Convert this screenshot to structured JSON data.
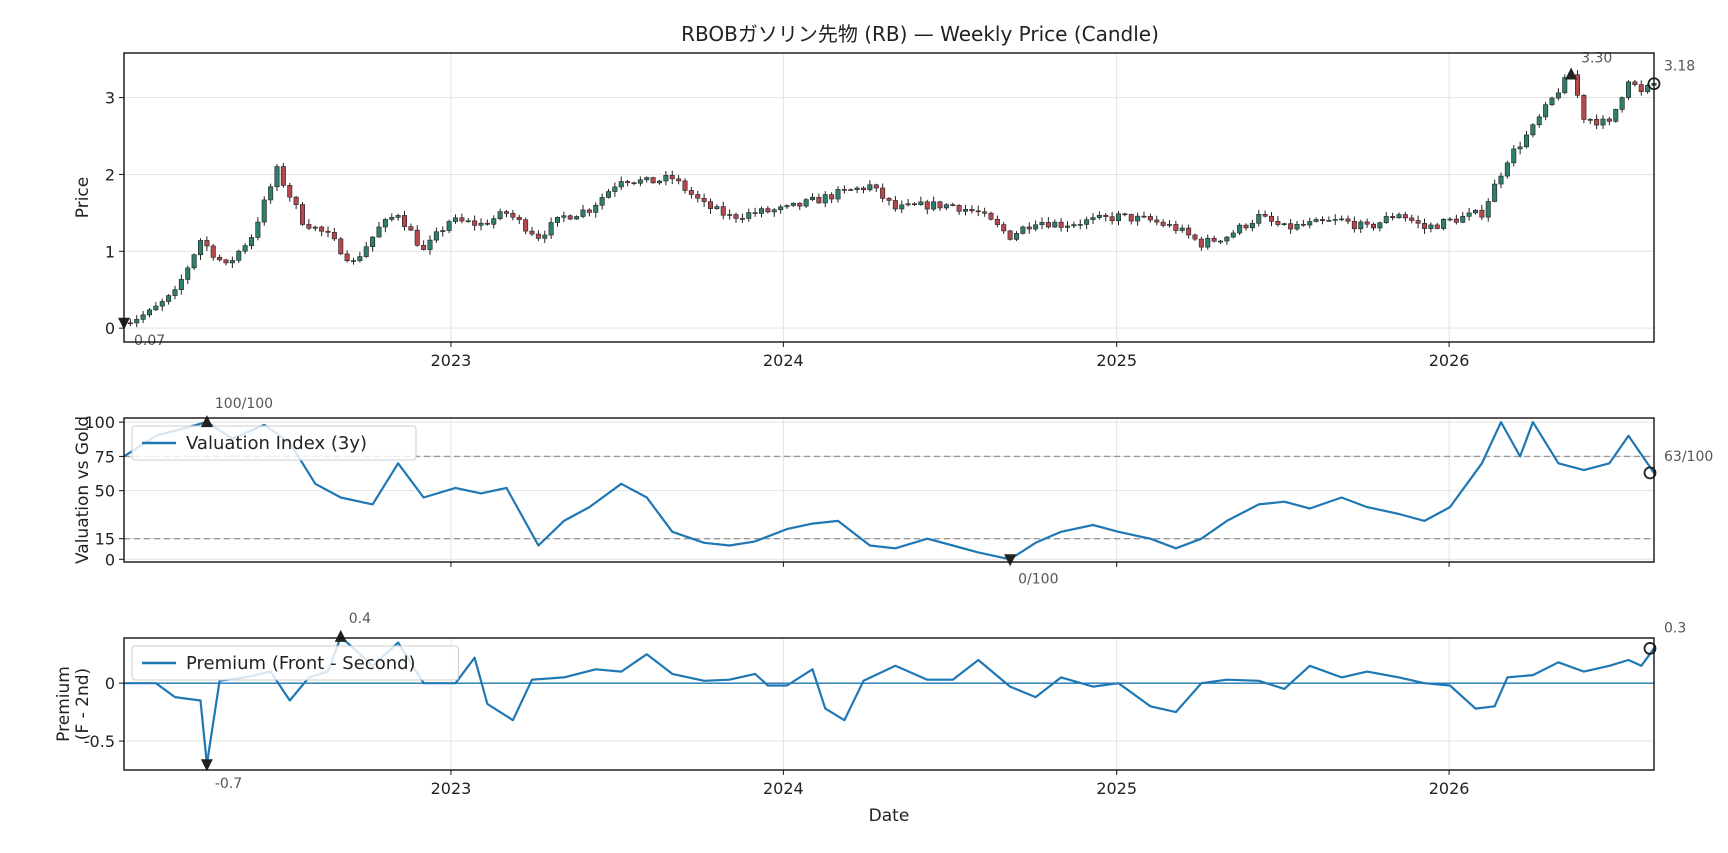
{
  "title": "RBOBガソリン先物 (RB) — Weekly Price (Candle)",
  "chart_data": [
    {
      "type": "candlestick",
      "title": "RBOBガソリン先物 (RB) — Weekly Price (Candle)",
      "xlabel": "",
      "ylabel": "Price",
      "xlim": [
        "2022-01-07",
        "2026-08-14"
      ],
      "ylim": [
        -0.18,
        3.58
      ],
      "yticks": [
        0,
        1,
        2,
        3
      ],
      "xticks": [
        "2023",
        "2024",
        "2025",
        "2026"
      ],
      "grid": true,
      "up_color": "#2f7d6d",
      "down_color": "#b5484d",
      "close_anchors": [
        [
          "2022-01-07",
          0.07
        ],
        [
          "2022-02-04",
          0.2
        ],
        [
          "2022-03-04",
          0.45
        ],
        [
          "2022-04-01",
          1.15
        ],
        [
          "2022-04-29",
          0.8
        ],
        [
          "2022-05-27",
          1.2
        ],
        [
          "2022-06-24",
          2.05
        ],
        [
          "2022-07-22",
          1.4
        ],
        [
          "2022-08-19",
          1.2
        ],
        [
          "2022-09-16",
          0.85
        ],
        [
          "2022-10-14",
          1.3
        ],
        [
          "2022-11-04",
          1.5
        ],
        [
          "2022-12-02",
          1.0
        ],
        [
          "2022-12-30",
          1.4
        ],
        [
          "2023-02-03",
          1.35
        ],
        [
          "2023-03-03",
          1.5
        ],
        [
          "2023-04-07",
          1.2
        ],
        [
          "2023-05-05",
          1.45
        ],
        [
          "2023-06-02",
          1.55
        ],
        [
          "2023-07-07",
          1.95
        ],
        [
          "2023-08-04",
          1.9
        ],
        [
          "2023-09-01",
          1.95
        ],
        [
          "2023-10-06",
          1.6
        ],
        [
          "2023-11-03",
          1.45
        ],
        [
          "2023-12-01",
          1.5
        ],
        [
          "2024-01-05",
          1.55
        ],
        [
          "2024-02-02",
          1.65
        ],
        [
          "2024-03-01",
          1.75
        ],
        [
          "2024-04-05",
          1.85
        ],
        [
          "2024-05-03",
          1.55
        ],
        [
          "2024-06-07",
          1.6
        ],
        [
          "2024-07-05",
          1.6
        ],
        [
          "2024-08-02",
          1.5
        ],
        [
          "2024-09-06",
          1.2
        ],
        [
          "2024-10-04",
          1.4
        ],
        [
          "2024-11-01",
          1.35
        ],
        [
          "2024-12-06",
          1.4
        ],
        [
          "2025-01-03",
          1.45
        ],
        [
          "2025-02-07",
          1.4
        ],
        [
          "2025-03-07",
          1.3
        ],
        [
          "2025-04-04",
          1.1
        ],
        [
          "2025-05-02",
          1.2
        ],
        [
          "2025-06-06",
          1.45
        ],
        [
          "2025-07-04",
          1.3
        ],
        [
          "2025-08-01",
          1.35
        ],
        [
          "2025-09-05",
          1.4
        ],
        [
          "2025-10-03",
          1.3
        ],
        [
          "2025-11-07",
          1.5
        ],
        [
          "2025-12-05",
          1.3
        ],
        [
          "2026-01-02",
          1.4
        ],
        [
          "2026-02-06",
          1.5
        ],
        [
          "2026-03-06",
          2.2
        ],
        [
          "2026-04-03",
          2.6
        ],
        [
          "2026-05-01",
          3.1
        ],
        [
          "2026-05-15",
          3.3
        ],
        [
          "2026-05-29",
          2.75
        ],
        [
          "2026-06-26",
          2.65
        ],
        [
          "2026-07-17",
          3.25
        ],
        [
          "2026-07-31",
          3.05
        ],
        [
          "2026-08-14",
          3.18
        ]
      ],
      "annotations": [
        {
          "label": "0.07",
          "x": "2022-01-07",
          "y": 0.07,
          "marker": "min"
        },
        {
          "label": "3.30",
          "x": "2026-05-15",
          "y": 3.3,
          "marker": "max"
        },
        {
          "label": "3.18",
          "x": "2026-08-14",
          "y": 3.18,
          "marker": "last"
        }
      ]
    },
    {
      "type": "line",
      "ylabel": "Valuation vs Gold",
      "ylim": [
        -2,
        103
      ],
      "yticks": [
        0,
        15,
        50,
        75,
        100
      ],
      "reference_lines": [
        15,
        75
      ],
      "legend": {
        "position": "upper-left"
      },
      "series": [
        {
          "name": "Valuation Index (3y)",
          "color": "#1f77b4",
          "points": [
            [
              "2022-01-07",
              75
            ],
            [
              "2022-02-11",
              90
            ],
            [
              "2022-03-11",
              95
            ],
            [
              "2022-04-08",
              100
            ],
            [
              "2022-05-06",
              88
            ],
            [
              "2022-06-10",
              98
            ],
            [
              "2022-07-08",
              85
            ],
            [
              "2022-08-05",
              55
            ],
            [
              "2022-09-02",
              45
            ],
            [
              "2022-10-07",
              40
            ],
            [
              "2022-11-04",
              70
            ],
            [
              "2022-12-02",
              45
            ],
            [
              "2023-01-06",
              52
            ],
            [
              "2023-02-03",
              48
            ],
            [
              "2023-03-03",
              52
            ],
            [
              "2023-04-07",
              10
            ],
            [
              "2023-05-05",
              28
            ],
            [
              "2023-06-02",
              38
            ],
            [
              "2023-07-07",
              55
            ],
            [
              "2023-08-04",
              45
            ],
            [
              "2023-09-01",
              20
            ],
            [
              "2023-10-06",
              12
            ],
            [
              "2023-11-03",
              10
            ],
            [
              "2023-12-01",
              13
            ],
            [
              "2024-01-05",
              22
            ],
            [
              "2024-02-02",
              26
            ],
            [
              "2024-03-01",
              28
            ],
            [
              "2024-04-05",
              10
            ],
            [
              "2024-05-03",
              8
            ],
            [
              "2024-06-07",
              15
            ],
            [
              "2024-07-05",
              10
            ],
            [
              "2024-08-02",
              5
            ],
            [
              "2024-09-06",
              0
            ],
            [
              "2024-10-04",
              12
            ],
            [
              "2024-11-01",
              20
            ],
            [
              "2024-12-06",
              25
            ],
            [
              "2025-01-03",
              20
            ],
            [
              "2025-02-07",
              15
            ],
            [
              "2025-03-07",
              8
            ],
            [
              "2025-04-04",
              15
            ],
            [
              "2025-05-02",
              28
            ],
            [
              "2025-06-06",
              40
            ],
            [
              "2025-07-04",
              42
            ],
            [
              "2025-08-01",
              37
            ],
            [
              "2025-09-05",
              45
            ],
            [
              "2025-10-03",
              38
            ],
            [
              "2025-11-07",
              33
            ],
            [
              "2025-12-05",
              28
            ],
            [
              "2026-01-02",
              38
            ],
            [
              "2026-02-06",
              70
            ],
            [
              "2026-02-27",
              100
            ],
            [
              "2026-03-20",
              75
            ],
            [
              "2026-04-03",
              100
            ],
            [
              "2026-05-01",
              70
            ],
            [
              "2026-05-29",
              65
            ],
            [
              "2026-06-26",
              70
            ],
            [
              "2026-07-17",
              90
            ],
            [
              "2026-08-14",
              63
            ]
          ]
        }
      ],
      "annotations": [
        {
          "label": "100/100",
          "x": "2022-04-08",
          "y": 100,
          "marker": "max"
        },
        {
          "label": "0/100",
          "x": "2024-09-06",
          "y": 0,
          "marker": "min"
        },
        {
          "label": "63/100",
          "x": "2026-08-14",
          "y": 63,
          "marker": "last"
        }
      ]
    },
    {
      "type": "line",
      "xlabel": "Date",
      "ylabel": "Premium\n(F - 2nd)",
      "ylim": [
        -0.75,
        0.39
      ],
      "yticks": [
        0.0,
        -0.5
      ],
      "xticks": [
        "2023",
        "2024",
        "2025",
        "2026"
      ],
      "reference_lines": [
        0
      ],
      "legend": {
        "position": "upper-left"
      },
      "series": [
        {
          "name": "Premium (Front - Second)",
          "color": "#1f77b4",
          "points": [
            [
              "2022-01-07",
              0.0
            ],
            [
              "2022-02-11",
              0.0
            ],
            [
              "2022-03-04",
              -0.12
            ],
            [
              "2022-04-01",
              -0.15
            ],
            [
              "2022-04-08",
              -0.7
            ],
            [
              "2022-04-22",
              0.02
            ],
            [
              "2022-05-20",
              0.05
            ],
            [
              "2022-06-17",
              0.1
            ],
            [
              "2022-07-08",
              -0.15
            ],
            [
              "2022-07-29",
              0.05
            ],
            [
              "2022-08-19",
              0.1
            ],
            [
              "2022-09-02",
              0.4
            ],
            [
              "2022-10-07",
              0.15
            ],
            [
              "2022-11-04",
              0.35
            ],
            [
              "2022-12-02",
              0.0
            ],
            [
              "2023-01-06",
              0.0
            ],
            [
              "2023-01-27",
              0.22
            ],
            [
              "2023-02-10",
              -0.18
            ],
            [
              "2023-03-10",
              -0.32
            ],
            [
              "2023-03-31",
              0.03
            ],
            [
              "2023-05-05",
              0.05
            ],
            [
              "2023-06-09",
              0.12
            ],
            [
              "2023-07-07",
              0.1
            ],
            [
              "2023-08-04",
              0.25
            ],
            [
              "2023-09-01",
              0.08
            ],
            [
              "2023-10-06",
              0.02
            ],
            [
              "2023-11-03",
              0.03
            ],
            [
              "2023-12-01",
              0.08
            ],
            [
              "2023-12-15",
              -0.02
            ],
            [
              "2024-01-05",
              -0.02
            ],
            [
              "2024-02-02",
              0.12
            ],
            [
              "2024-02-16",
              -0.22
            ],
            [
              "2024-03-08",
              -0.32
            ],
            [
              "2024-03-29",
              0.02
            ],
            [
              "2024-05-03",
              0.15
            ],
            [
              "2024-06-07",
              0.03
            ],
            [
              "2024-07-05",
              0.03
            ],
            [
              "2024-08-02",
              0.2
            ],
            [
              "2024-09-06",
              -0.03
            ],
            [
              "2024-10-04",
              -0.12
            ],
            [
              "2024-11-01",
              0.05
            ],
            [
              "2024-12-06",
              -0.03
            ],
            [
              "2025-01-03",
              0.0
            ],
            [
              "2025-02-07",
              -0.2
            ],
            [
              "2025-03-07",
              -0.25
            ],
            [
              "2025-04-04",
              0.0
            ],
            [
              "2025-05-02",
              0.03
            ],
            [
              "2025-06-06",
              0.02
            ],
            [
              "2025-07-04",
              -0.05
            ],
            [
              "2025-08-01",
              0.15
            ],
            [
              "2025-09-05",
              0.05
            ],
            [
              "2025-10-03",
              0.1
            ],
            [
              "2025-11-07",
              0.05
            ],
            [
              "2025-12-05",
              0.0
            ],
            [
              "2026-01-02",
              -0.02
            ],
            [
              "2026-01-30",
              -0.22
            ],
            [
              "2026-02-20",
              -0.2
            ],
            [
              "2026-03-06",
              0.05
            ],
            [
              "2026-04-03",
              0.07
            ],
            [
              "2026-05-01",
              0.18
            ],
            [
              "2026-05-29",
              0.1
            ],
            [
              "2026-06-26",
              0.15
            ],
            [
              "2026-07-17",
              0.2
            ],
            [
              "2026-07-31",
              0.15
            ],
            [
              "2026-08-14",
              0.3
            ]
          ]
        }
      ],
      "annotations": [
        {
          "label": "0.4",
          "x": "2022-09-02",
          "y": 0.4,
          "marker": "max"
        },
        {
          "label": "-0.7",
          "x": "2022-04-08",
          "y": -0.7,
          "marker": "min"
        },
        {
          "label": "0.3",
          "x": "2026-08-14",
          "y": 0.3,
          "marker": "last"
        }
      ]
    }
  ]
}
